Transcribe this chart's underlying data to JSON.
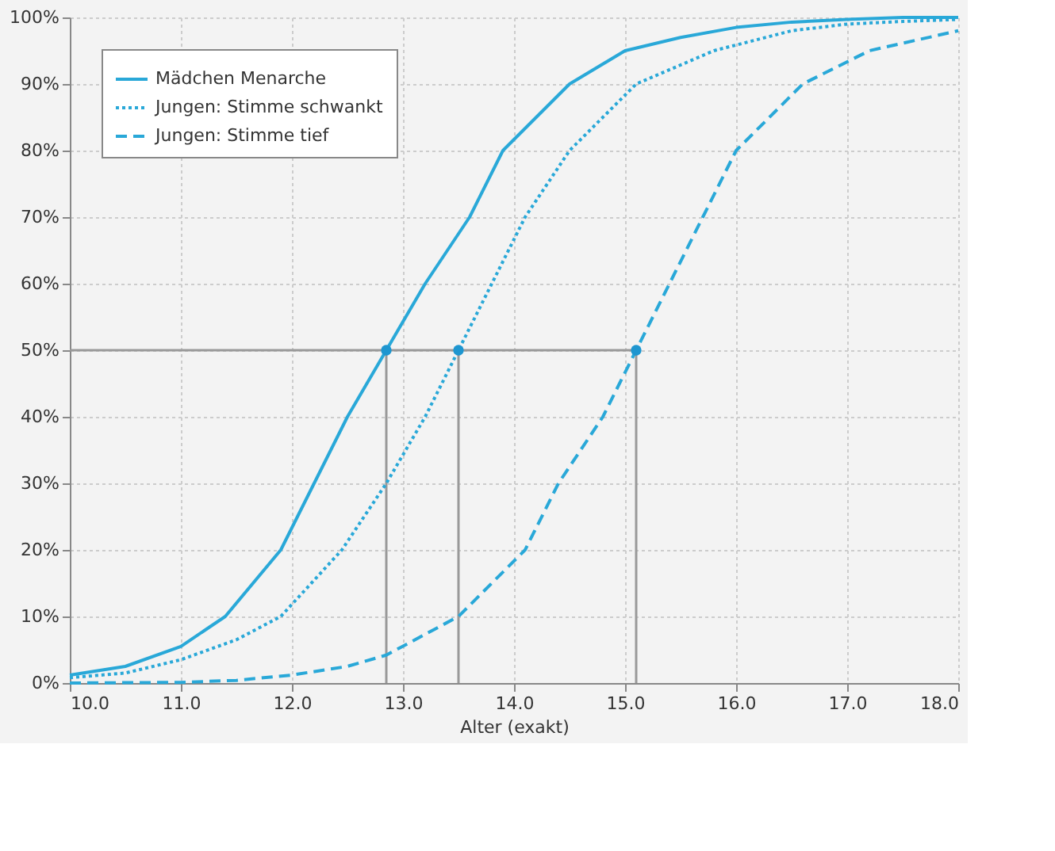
{
  "chart_data": {
    "type": "line",
    "xlabel": "Alter (exakt)",
    "xlim": [
      10,
      18
    ],
    "ylim": [
      0,
      100
    ],
    "xticks": [
      {
        "value": 10,
        "label": "10.0"
      },
      {
        "value": 11,
        "label": "11.0"
      },
      {
        "value": 12,
        "label": "12.0"
      },
      {
        "value": 13,
        "label": "13.0"
      },
      {
        "value": 14,
        "label": "14.0"
      },
      {
        "value": 15,
        "label": "15.0"
      },
      {
        "value": 16,
        "label": "16.0"
      },
      {
        "value": 17,
        "label": "17.0"
      },
      {
        "value": 18,
        "label": "18.0"
      }
    ],
    "yticks": [
      {
        "value": 0,
        "label": "0%"
      },
      {
        "value": 10,
        "label": "10%"
      },
      {
        "value": 20,
        "label": "20%"
      },
      {
        "value": 30,
        "label": "30%"
      },
      {
        "value": 40,
        "label": "40%"
      },
      {
        "value": 50,
        "label": "50%"
      },
      {
        "value": 60,
        "label": "60%"
      },
      {
        "value": 70,
        "label": "70%"
      },
      {
        "value": 80,
        "label": "80%"
      },
      {
        "value": 90,
        "label": "90%"
      },
      {
        "value": 100,
        "label": "100%"
      }
    ],
    "grid": true,
    "legend": "top left",
    "series": [
      {
        "name": "Mädchen Menarche",
        "color": "#29a8d8",
        "line_style": "solid",
        "x": [
          10,
          10.5,
          11,
          11.4,
          11.9,
          12.2,
          12.5,
          12.85,
          13.2,
          13.6,
          13.9,
          14.5,
          15,
          15.5,
          16,
          16.5,
          17,
          17.5,
          18
        ],
        "values": [
          1.2,
          2.5,
          5.5,
          10,
          20,
          30,
          40,
          50,
          60,
          70,
          80,
          90,
          95,
          97,
          98.5,
          99.3,
          99.7,
          100,
          100
        ]
      },
      {
        "name": "Jungen: Stimme schwankt",
        "color": "#29a8d8",
        "line_style": "dotted",
        "x": [
          10,
          10.5,
          11,
          11.5,
          11.9,
          12.45,
          12.85,
          13.2,
          13.5,
          13.8,
          14.1,
          14.5,
          15.1,
          15.8,
          16.5,
          17,
          17.5,
          18
        ],
        "values": [
          0.8,
          1.5,
          3.5,
          6.5,
          10,
          20,
          30,
          40,
          50,
          60,
          70,
          80,
          90,
          95,
          98,
          99,
          99.4,
          99.7
        ]
      },
      {
        "name": "Jungen: Stimme tief",
        "color": "#29a8d8",
        "line_style": "dashed",
        "x": [
          10,
          11,
          11.5,
          12,
          12.5,
          12.85,
          13.5,
          14.1,
          14.4,
          14.8,
          15.1,
          15.4,
          15.7,
          16,
          16.6,
          17.2,
          18
        ],
        "values": [
          0,
          0.1,
          0.4,
          1.2,
          2.5,
          4.2,
          10,
          20,
          30,
          40,
          50,
          60,
          70,
          80,
          90,
          95,
          98
        ]
      },
      {
        "type": "scatter",
        "color": "#1e96d0",
        "marker": "circle",
        "x": [
          12.85,
          13.5,
          15.1
        ],
        "values": [
          50,
          50,
          50
        ]
      }
    ],
    "ref_lines": [
      {
        "axis": "y",
        "value": 50,
        "color": "#999999"
      },
      {
        "axis": "x",
        "value": 12.85,
        "color": "#999999"
      },
      {
        "axis": "x",
        "value": 13.5,
        "color": "#999999"
      },
      {
        "axis": "x",
        "value": 15.1,
        "color": "#999999"
      }
    ]
  }
}
